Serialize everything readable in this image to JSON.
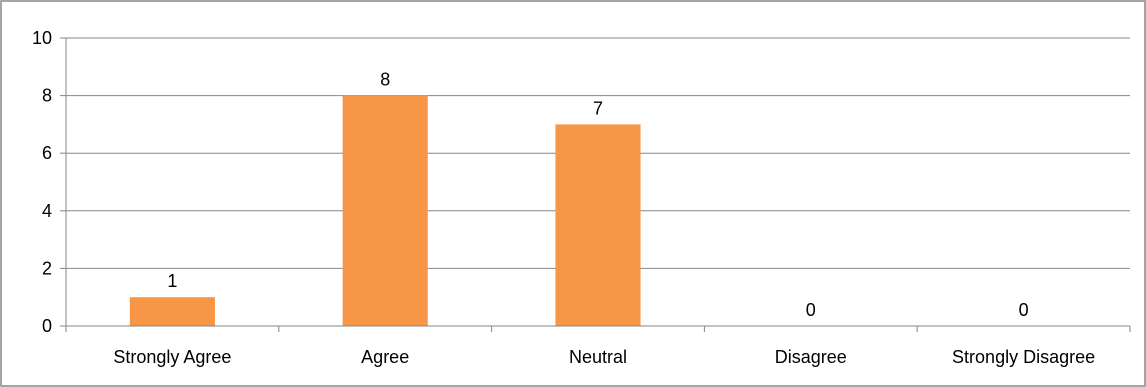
{
  "chart_data": {
    "type": "bar",
    "categories": [
      "Strongly Agree",
      "Agree",
      "Neutral",
      "Disagree",
      "Strongly Disagree"
    ],
    "values": [
      1,
      8,
      7,
      0,
      0
    ],
    "data_labels": [
      "1",
      "8",
      "7",
      "0",
      "0"
    ],
    "y_ticks": [
      "0",
      "2",
      "4",
      "6",
      "8",
      "10"
    ],
    "ylim": [
      0,
      10
    ],
    "grid": true,
    "legend": "none",
    "bar_color": "#F79646",
    "grid_color": "#868686",
    "axis_color": "#868686",
    "frame_color": "#868686"
  }
}
